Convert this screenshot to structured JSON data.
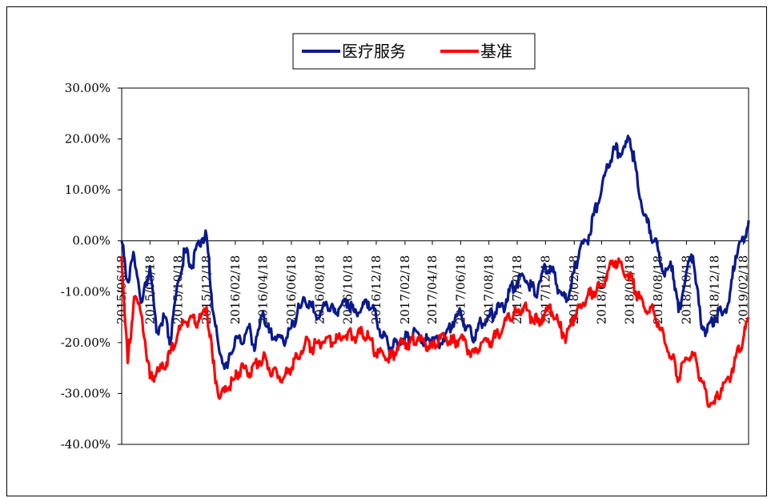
{
  "chart_data": {
    "type": "line",
    "title": "",
    "xlabel": "",
    "ylabel": "",
    "y_ticks": [
      "30.00%",
      "20.00%",
      "10.00%",
      "0.00%",
      "-10.00%",
      "-20.00%",
      "-30.00%",
      "-40.00%"
    ],
    "y_tick_values": [
      30,
      20,
      10,
      0,
      -10,
      -20,
      -30,
      -40
    ],
    "ylim": [
      -40,
      30
    ],
    "x_ticks": [
      "2015/06/18",
      "2015/08/18",
      "2015/10/18",
      "2015/12/18",
      "2016/02/18",
      "2016/04/18",
      "2016/06/18",
      "2016/08/18",
      "2016/10/18",
      "2016/12/18",
      "2017/02/18",
      "2017/04/18",
      "2017/06/18",
      "2017/08/18",
      "2017/10/18",
      "2017/12/18",
      "2018/02/18",
      "2018/04/18",
      "2018/06/18",
      "2018/08/18",
      "2018/10/18",
      "2018/12/18",
      "2019/02/18"
    ],
    "x_ticks_visible": [
      "2015/06/18",
      "2015/08/18",
      "2015/10/18",
      "2015/12/18",
      "2016/02/18",
      "2016/04/18",
      "2016/06/18",
      "2016/08/18",
      "2016/10/18",
      "2016/12/18",
      "2017/02/18",
      "2017/04/18",
      "2017/06/18",
      "2017/08/18",
      "2017/10/18",
      "2017/12/18",
      "2018/02/18",
      "2018/04/18",
      "2018/06/18",
      "2018/08/18",
      "2018/10/18",
      "2018/12/18",
      "2019/02/18"
    ],
    "legend_position": "top-center",
    "series": [
      {
        "name": "医疗服务",
        "color": "#0a1a8c",
        "x": [
          "2015/06/18",
          "2015/07/01",
          "2015/07/15",
          "2015/08/01",
          "2015/08/18",
          "2015/09/01",
          "2015/09/18",
          "2015/10/01",
          "2015/10/18",
          "2015/11/01",
          "2015/11/18",
          "2015/12/01",
          "2015/12/18",
          "2016/01/01",
          "2016/01/15",
          "2016/02/01",
          "2016/02/18",
          "2016/03/01",
          "2016/03/18",
          "2016/04/01",
          "2016/04/18",
          "2016/05/01",
          "2016/05/18",
          "2016/06/01",
          "2016/06/18",
          "2016/07/01",
          "2016/07/18",
          "2016/08/01",
          "2016/08/18",
          "2016/09/01",
          "2016/09/18",
          "2016/10/01",
          "2016/10/18",
          "2016/11/01",
          "2016/11/18",
          "2016/12/01",
          "2016/12/18",
          "2017/01/01",
          "2017/01/18",
          "2017/02/01",
          "2017/02/18",
          "2017/03/01",
          "2017/03/18",
          "2017/04/01",
          "2017/04/18",
          "2017/05/01",
          "2017/05/18",
          "2017/06/01",
          "2017/06/18",
          "2017/07/01",
          "2017/07/18",
          "2017/08/01",
          "2017/08/18",
          "2017/09/01",
          "2017/09/18",
          "2017/10/01",
          "2017/10/18",
          "2017/11/01",
          "2017/11/18",
          "2017/12/01",
          "2017/12/18",
          "2018/01/01",
          "2018/01/18",
          "2018/02/01",
          "2018/02/18",
          "2018/03/01",
          "2018/03/18",
          "2018/04/01",
          "2018/04/18",
          "2018/05/01",
          "2018/05/18",
          "2018/06/01",
          "2018/06/18",
          "2018/07/01",
          "2018/07/18",
          "2018/08/01",
          "2018/08/18",
          "2018/09/01",
          "2018/09/18",
          "2018/10/01",
          "2018/10/18",
          "2018/11/01",
          "2018/11/18",
          "2018/12/01",
          "2018/12/18",
          "2019/01/01",
          "2019/01/18",
          "2019/02/01",
          "2019/02/18",
          "2019/03/01"
        ],
        "values": [
          0,
          -8,
          -3,
          -12,
          -5,
          -18,
          -15,
          -20,
          -8,
          -2,
          -5,
          0,
          1,
          -14,
          -22,
          -25,
          -19,
          -20,
          -17,
          -21,
          -14,
          -18,
          -19,
          -20,
          -17,
          -14,
          -12,
          -13,
          -15,
          -12,
          -14,
          -13,
          -12,
          -14,
          -13,
          -12,
          -15,
          -19,
          -21,
          -20,
          -19,
          -19,
          -18,
          -20,
          -19,
          -20,
          -18,
          -16,
          -14,
          -17,
          -19,
          -16,
          -15,
          -14,
          -13,
          -10,
          -8,
          -7,
          -9,
          -10,
          -5,
          -6,
          -10,
          -12,
          -6,
          -2,
          0,
          5,
          10,
          15,
          18,
          17,
          20,
          14,
          5,
          2,
          -2,
          -7,
          -5,
          -14,
          -6,
          -3,
          -16,
          -18,
          -15,
          -14,
          -12,
          -3,
          0,
          4
        ],
        "values_note_removed": true
      },
      {
        "name": "基准",
        "color": "#ff0000",
        "x": [
          "2015/06/18",
          "2015/07/01",
          "2015/07/15",
          "2015/08/01",
          "2015/08/18",
          "2015/09/01",
          "2015/09/18",
          "2015/10/01",
          "2015/10/18",
          "2015/11/01",
          "2015/11/18",
          "2015/12/01",
          "2015/12/18",
          "2016/01/01",
          "2016/01/15",
          "2016/02/01",
          "2016/02/18",
          "2016/03/01",
          "2016/03/18",
          "2016/04/01",
          "2016/04/18",
          "2016/05/01",
          "2016/05/18",
          "2016/06/01",
          "2016/06/18",
          "2016/07/01",
          "2016/07/18",
          "2016/08/01",
          "2016/08/18",
          "2016/09/01",
          "2016/09/18",
          "2016/10/01",
          "2016/10/18",
          "2016/11/01",
          "2016/11/18",
          "2016/12/01",
          "2016/12/18",
          "2017/01/01",
          "2017/01/18",
          "2017/02/01",
          "2017/02/18",
          "2017/03/01",
          "2017/03/18",
          "2017/04/01",
          "2017/04/18",
          "2017/05/01",
          "2017/05/18",
          "2017/06/01",
          "2017/06/18",
          "2017/07/01",
          "2017/07/18",
          "2017/08/01",
          "2017/08/18",
          "2017/09/01",
          "2017/09/18",
          "2017/10/01",
          "2017/10/18",
          "2017/11/01",
          "2017/11/18",
          "2017/12/01",
          "2017/12/18",
          "2018/01/01",
          "2018/01/18",
          "2018/02/01",
          "2018/02/18",
          "2018/03/01",
          "2018/03/18",
          "2018/04/01",
          "2018/04/18",
          "2018/05/01",
          "2018/05/18",
          "2018/06/01",
          "2018/06/18",
          "2018/07/01",
          "2018/07/18",
          "2018/08/01",
          "2018/08/18",
          "2018/09/01",
          "2018/09/18",
          "2018/10/01",
          "2018/10/18",
          "2018/11/01",
          "2018/11/18",
          "2018/12/01",
          "2018/12/18",
          "2019/01/01",
          "2019/01/18",
          "2019/02/01",
          "2019/02/18",
          "2019/03/01"
        ],
        "values": [
          -3,
          -24,
          -11,
          -15,
          -27,
          -26,
          -25,
          -22,
          -18,
          -16,
          -15,
          -16,
          -13,
          -24,
          -31,
          -29,
          -27,
          -25,
          -26,
          -24,
          -23,
          -25,
          -26,
          -27,
          -25,
          -23,
          -20,
          -21,
          -20,
          -19,
          -20,
          -19,
          -18,
          -19,
          -18,
          -19,
          -22,
          -22,
          -23,
          -21,
          -20,
          -20,
          -19,
          -20,
          -21,
          -20,
          -19,
          -20,
          -19,
          -21,
          -22,
          -20,
          -20,
          -19,
          -17,
          -15,
          -14,
          -13,
          -15,
          -16,
          -14,
          -14,
          -17,
          -19,
          -15,
          -13,
          -11,
          -10,
          -9,
          -6,
          -4,
          -5,
          -7,
          -10,
          -13,
          -13,
          -16,
          -20,
          -23,
          -27,
          -23,
          -22,
          -27,
          -31,
          -32,
          -29,
          -27,
          -23,
          -19,
          -15
        ]
      }
    ],
    "grid": false
  }
}
